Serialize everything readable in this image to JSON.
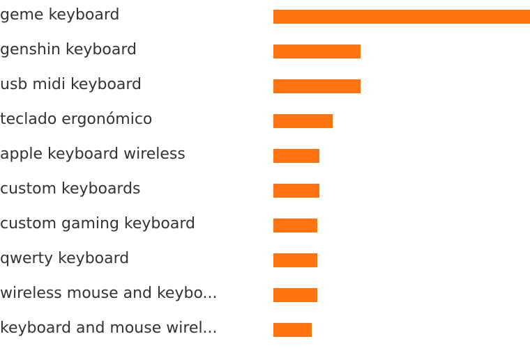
{
  "chart_data": {
    "type": "bar",
    "orientation": "horizontal",
    "categories": [
      "geme keyboard",
      "genshin keyboard",
      "usb midi keyboard",
      "teclado ergonómico",
      "apple keyboard wireless",
      "custom keyboards",
      "custom gaming keyboard",
      "qwerty keyboard",
      "wireless mouse and keybo...",
      "keyboard and mouse wirel..."
    ],
    "values": [
      100,
      34,
      34,
      23,
      18,
      18,
      17,
      17,
      17,
      15
    ],
    "xlim": [
      0,
      100
    ],
    "grid": false,
    "legend": false,
    "colors": {
      "bar": "#ff7410"
    }
  }
}
